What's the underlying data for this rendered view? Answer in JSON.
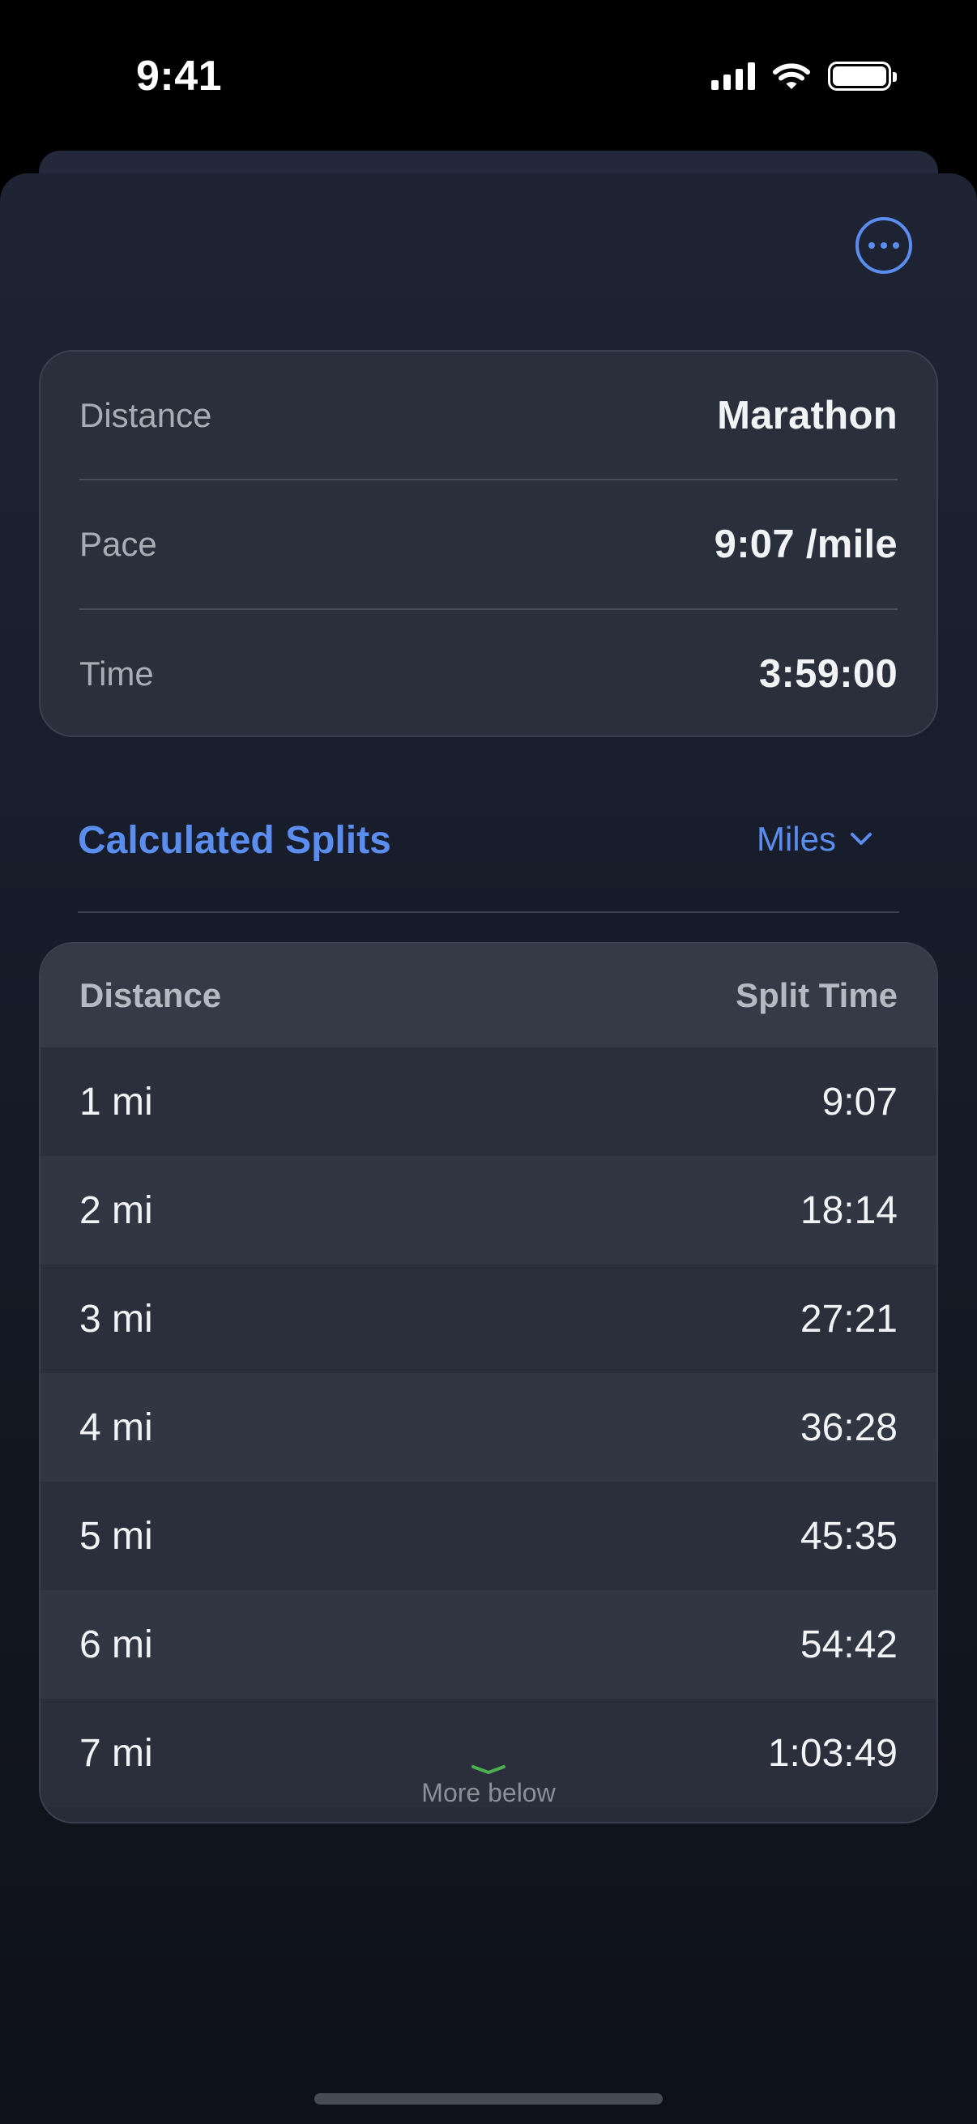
{
  "status_bar": {
    "time": "9:41"
  },
  "summary": {
    "rows": [
      {
        "label": "Distance",
        "value": "Marathon"
      },
      {
        "label": "Pace",
        "value": "9:07 /mile"
      },
      {
        "label": "Time",
        "value": "3:59:00"
      }
    ]
  },
  "splits": {
    "title": "Calculated Splits",
    "unit": "Miles",
    "columns": [
      "Distance",
      "Split Time"
    ],
    "rows": [
      {
        "distance": "1 mi",
        "time": "9:07"
      },
      {
        "distance": "2 mi",
        "time": "18:14"
      },
      {
        "distance": "3 mi",
        "time": "27:21"
      },
      {
        "distance": "4 mi",
        "time": "36:28"
      },
      {
        "distance": "5 mi",
        "time": "45:35"
      },
      {
        "distance": "6 mi",
        "time": "54:42"
      },
      {
        "distance": "7 mi",
        "time": "1:03:49"
      }
    ],
    "more_hint": "More below"
  },
  "colors": {
    "accent": "#5b8def",
    "more_chevron": "#4caf50"
  },
  "icons": [
    "signal-icon",
    "wifi-icon",
    "battery-icon",
    "more-options-icon",
    "chevron-down-icon"
  ]
}
